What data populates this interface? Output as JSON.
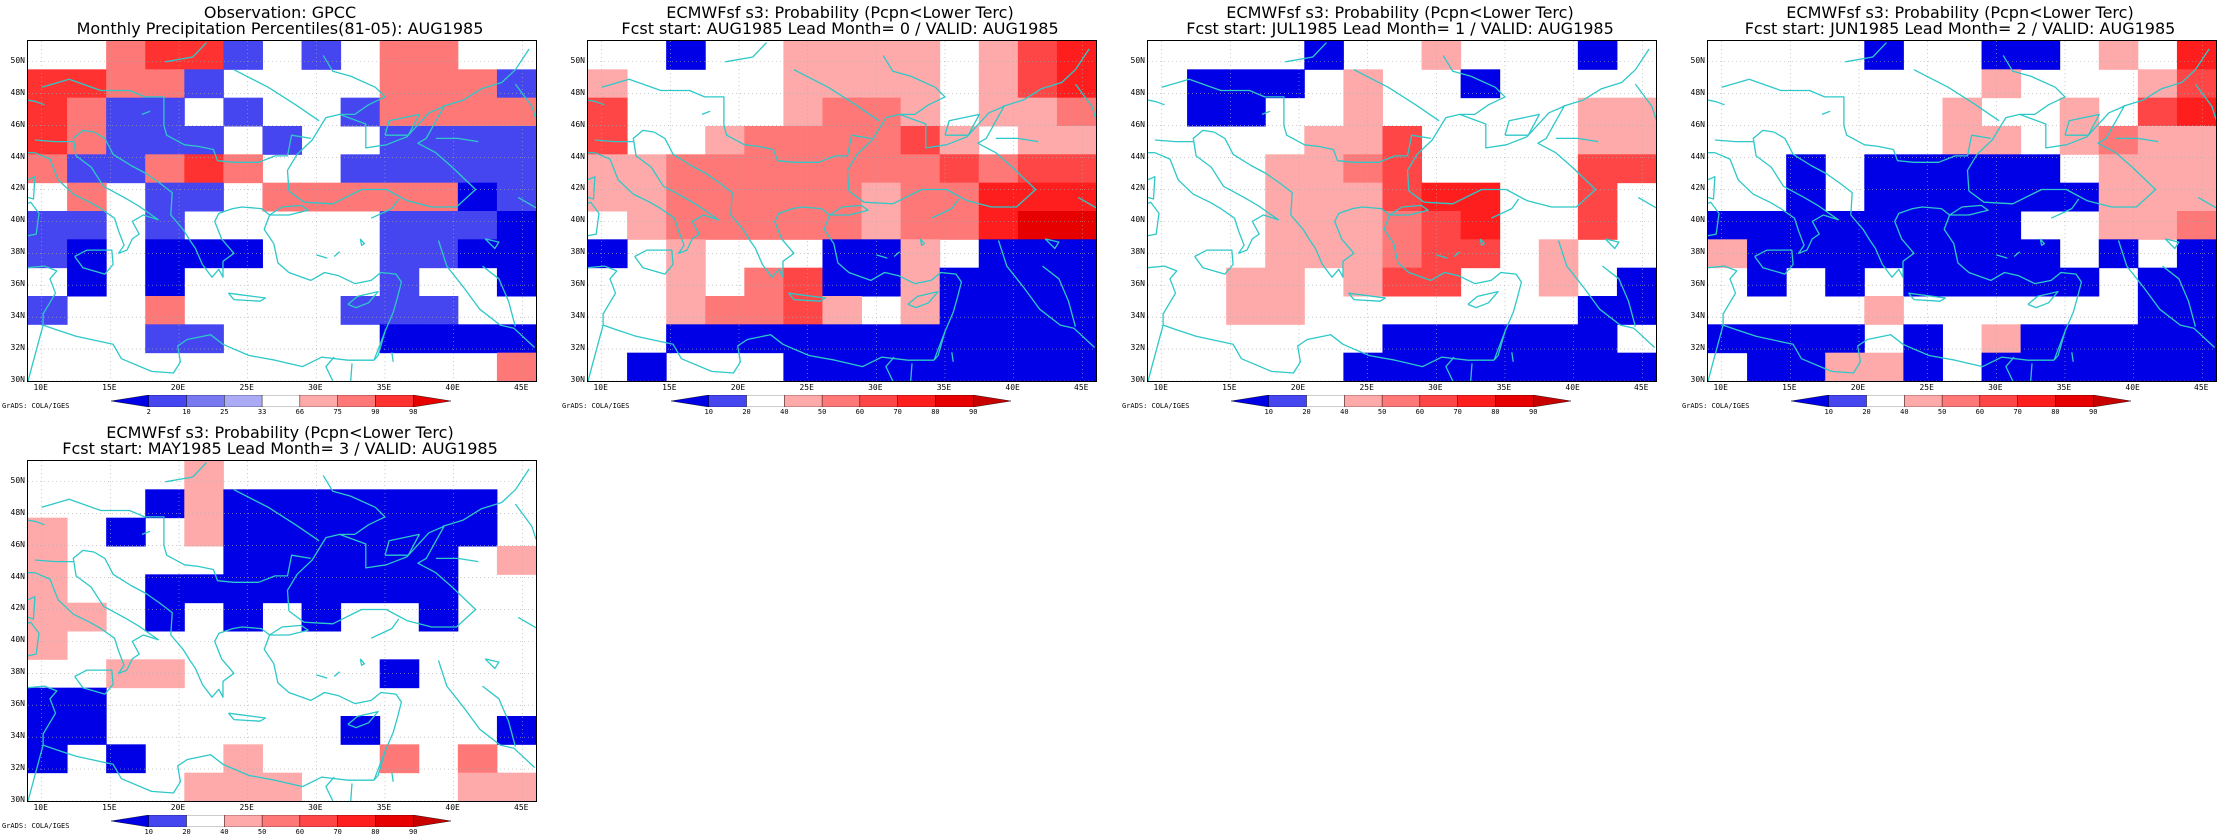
{
  "colors": {
    "coast": "#2ec8c8",
    "grid": "#aaaaaa",
    "obs_scale": [
      "#0000e6",
      "#4646f0",
      "#7878f0",
      "#aaaaf5",
      "#ffffff",
      "#ffaaaa",
      "#ff7878",
      "#ff3232",
      "#e60000"
    ],
    "prob_scale": [
      "#0000e6",
      "#4646f0",
      "#ffffff",
      "#ffaaaa",
      "#ff7878",
      "#ff4646",
      "#ff1e1e",
      "#e60000",
      "#c80000"
    ]
  },
  "axes": {
    "lat_labels": [
      "50N",
      "48N",
      "46N",
      "44N",
      "42N",
      "40N",
      "38N",
      "36N",
      "34N",
      "32N",
      "30N"
    ],
    "lon_labels": [
      "10E",
      "15E",
      "20E",
      "25E",
      "30E",
      "35E",
      "40E",
      "45E"
    ]
  },
  "panels": [
    {
      "title1": "Observation: GPCC",
      "title2": "Monthly Precipitation Percentiles(81-05): AUG1985",
      "footer": "GrADS: COLA/IGES",
      "scale": "obs",
      "cbar_labels": [
        "2",
        "10",
        "25",
        "33",
        "66",
        "75",
        "90",
        "98"
      ],
      "grid": [
        "WWCDDBWBWCCWW",
        "DDCCBWWWWCCCB",
        "DCBBWBWWBCCCC",
        "DCBBBWBWWBBBB",
        "CBBCDCWWBBBBB",
        "WCWBBWCCCCCAB",
        "BBWBWWWWWBBBA",
        "BAWAAAWWWBBAA",
        "WAWAWWWWWBWWA",
        "BWWCWWWWBBBWW",
        "WWWBBWWWWAAAA",
        "WWWWWWWWWWWWC"
      ]
    },
    {
      "title1": "ECMWFsf s3: Probability (Pcpn<Lower Terc)",
      "title2": "Fcst start: AUG1985  Lead Month= 0 / VALID: AUG1985",
      "footer": "GrADS: COLA/IGES",
      "scale": "prob",
      "cbar_labels": [
        "10",
        "20",
        "40",
        "50",
        "60",
        "70",
        "80",
        "90"
      ],
      "grid": [
        "WWAWWCCCCWCEF",
        "CWWWWCCCCWCEF",
        "EWWWWCDDCWCCD",
        "EWWCDDDDECWCC",
        "CCDDDDDDDEDEE",
        "CCDDDDDCDDFFF",
        "WCDDDDDCDDFGG",
        "AWCWWWAACWAAA",
        "WWCWDEAACAAAA",
        "WWCDDECWCAAAA",
        "WWAAAAAAAAAAA",
        "WAWWWAAAAAAAA"
      ]
    },
    {
      "title1": "ECMWFsf s3: Probability (Pcpn<Lower Terc)",
      "title2": "Fcst start: JUL1985  Lead Month= 1 / VALID: AUG1985",
      "footer": "GrADS: COLA/IGES",
      "scale": "prob",
      "cbar_labels": [
        "10",
        "20",
        "40",
        "50",
        "60",
        "70",
        "80",
        "90"
      ],
      "grid": [
        "WWWWAWWCWWWAW",
        "WAAAWCWWAWWWW",
        "WAAWWCWWWWWCC",
        "WWWWCCEWWWWCC",
        "WWWCCDEWWWWEE",
        "WWWCCCEFFWWEW",
        "WWWCCCDEFWWEW",
        "WWWCCCDEEWCWW",
        "WWCCWCEEWWCWA",
        "WWCCWWWWWWWAA",
        "WWWWWWAAAAAAW",
        "WWWWWAAAAAAAA"
      ]
    },
    {
      "title1": "ECMWFsf s3: Probability (Pcpn<Lower Terc)",
      "title2": "Fcst start: JUN1985  Lead Month= 2 / VALID: AUG1985",
      "footer": "GrADS: COLA/IGES",
      "scale": "prob",
      "cbar_labels": [
        "10",
        "20",
        "40",
        "50",
        "60",
        "70",
        "80",
        "90"
      ],
      "grid": [
        "WWWWAWWAAWCWF",
        "WWWWWWWCWWWCE",
        "WWWWWWCWWCWEF",
        "WWWWWWCCWCDCC",
        "WWAWAAAAAWCCC",
        "WWAWAAAAAACCC",
        "AAAAAAAAWWCCD",
        "CAAAAAAAAWAWA",
        "WAWAWAAAAAWAA",
        "WWWWCWWWWWWAA",
        "AAAAWAWCAAAAA",
        "WAACCAWAAAAAA"
      ]
    },
    {
      "title1": "ECMWFsf s3: Probability (Pcpn<Lower Terc)",
      "title2": "Fcst start: MAY1985  Lead Month= 3 / VALID: AUG1985",
      "footer": "GrADS: COLA/IGES",
      "scale": "prob",
      "cbar_labels": [
        "10",
        "20",
        "40",
        "50",
        "60",
        "70",
        "80",
        "90"
      ],
      "grid": [
        "WWWWCWWWWWWWW",
        "WWWACAAAAAAAW",
        "CWAWCAAAAAAAW",
        "CWWWWAAAAAAWC",
        "CWWAAAAAAAAWW",
        "CCWAWAWAWWAWW",
        "CWWWWWWWWWWWW",
        "WWCCWWWWWAWWW",
        "AAWWWWWWWWWWW",
        "AAWWWWWWAWWWA",
        "AWAWWCWWWDWDW",
        "WWWWCCCWWWWCC"
      ]
    }
  ]
}
